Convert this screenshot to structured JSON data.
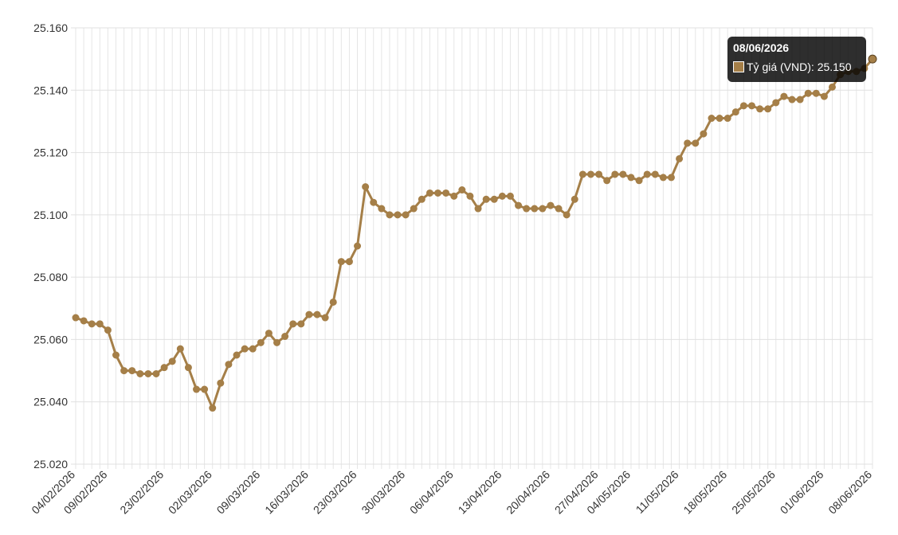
{
  "chart_data": {
    "type": "line",
    "categories": [
      "04/02/2026",
      null,
      null,
      null,
      "09/02/2026",
      null,
      null,
      null,
      null,
      null,
      null,
      "23/02/2026",
      null,
      null,
      null,
      null,
      null,
      "02/03/2026",
      null,
      null,
      null,
      null,
      null,
      "09/03/2026",
      null,
      null,
      null,
      null,
      null,
      "16/03/2026",
      null,
      null,
      null,
      null,
      null,
      "23/03/2026",
      null,
      null,
      null,
      null,
      null,
      "30/03/2026",
      null,
      null,
      null,
      null,
      null,
      "06/04/2026",
      null,
      null,
      null,
      null,
      null,
      "13/04/2026",
      null,
      null,
      null,
      null,
      null,
      "20/04/2026",
      null,
      null,
      null,
      null,
      null,
      "27/04/2026",
      null,
      null,
      null,
      "04/05/2026",
      null,
      null,
      null,
      null,
      null,
      "11/05/2026",
      null,
      null,
      null,
      null,
      null,
      "18/05/2026",
      null,
      null,
      null,
      null,
      null,
      "25/05/2026",
      null,
      null,
      null,
      null,
      null,
      "01/06/2026",
      null,
      null,
      null,
      null,
      null,
      "08/06/2026"
    ],
    "series": [
      {
        "name": "Tỷ giá (VND)",
        "color": "#a57f48",
        "values": [
          25067,
          25066,
          25065,
          25065,
          25063,
          25055,
          25050,
          25050,
          25049,
          25049,
          25049,
          25051,
          25053,
          25057,
          25051,
          25044,
          25044,
          25038,
          25046,
          25052,
          25055,
          25057,
          25057,
          25059,
          25062,
          25059,
          25061,
          25065,
          25065,
          25068,
          25068,
          25067,
          25072,
          25085,
          25085,
          25090,
          25109,
          25104,
          25102,
          25100,
          25100,
          25100,
          25102,
          25105,
          25107,
          25107,
          25107,
          25106,
          25108,
          25106,
          25102,
          25105,
          25105,
          25106,
          25106,
          25103,
          25102,
          25102,
          25102,
          25103,
          25102,
          25100,
          25105,
          25113,
          25113,
          25113,
          25111,
          25113,
          25113,
          25112,
          25111,
          25113,
          25113,
          25112,
          25112,
          25118,
          25123,
          25123,
          25126,
          25131,
          25131,
          25131,
          25133,
          25135,
          25135,
          25134,
          25134,
          25136,
          25138,
          25137,
          25137,
          25139,
          25139,
          25138,
          25141,
          25145,
          25146,
          25146,
          25147,
          25150
        ]
      }
    ],
    "ylim": [
      25020,
      25160
    ],
    "yticks": [
      {
        "value": 25020,
        "label": "25.020"
      },
      {
        "value": 25040,
        "label": "25.040"
      },
      {
        "value": 25060,
        "label": "25.060"
      },
      {
        "value": 25080,
        "label": "25.080"
      },
      {
        "value": 25100,
        "label": "25.100"
      },
      {
        "value": 25120,
        "label": "25.120"
      },
      {
        "value": 25140,
        "label": "25.140"
      },
      {
        "value": 25160,
        "label": "25.160"
      }
    ],
    "grid": true,
    "tooltip": {
      "title": "08/06/2026",
      "value_label": "25.150"
    }
  }
}
